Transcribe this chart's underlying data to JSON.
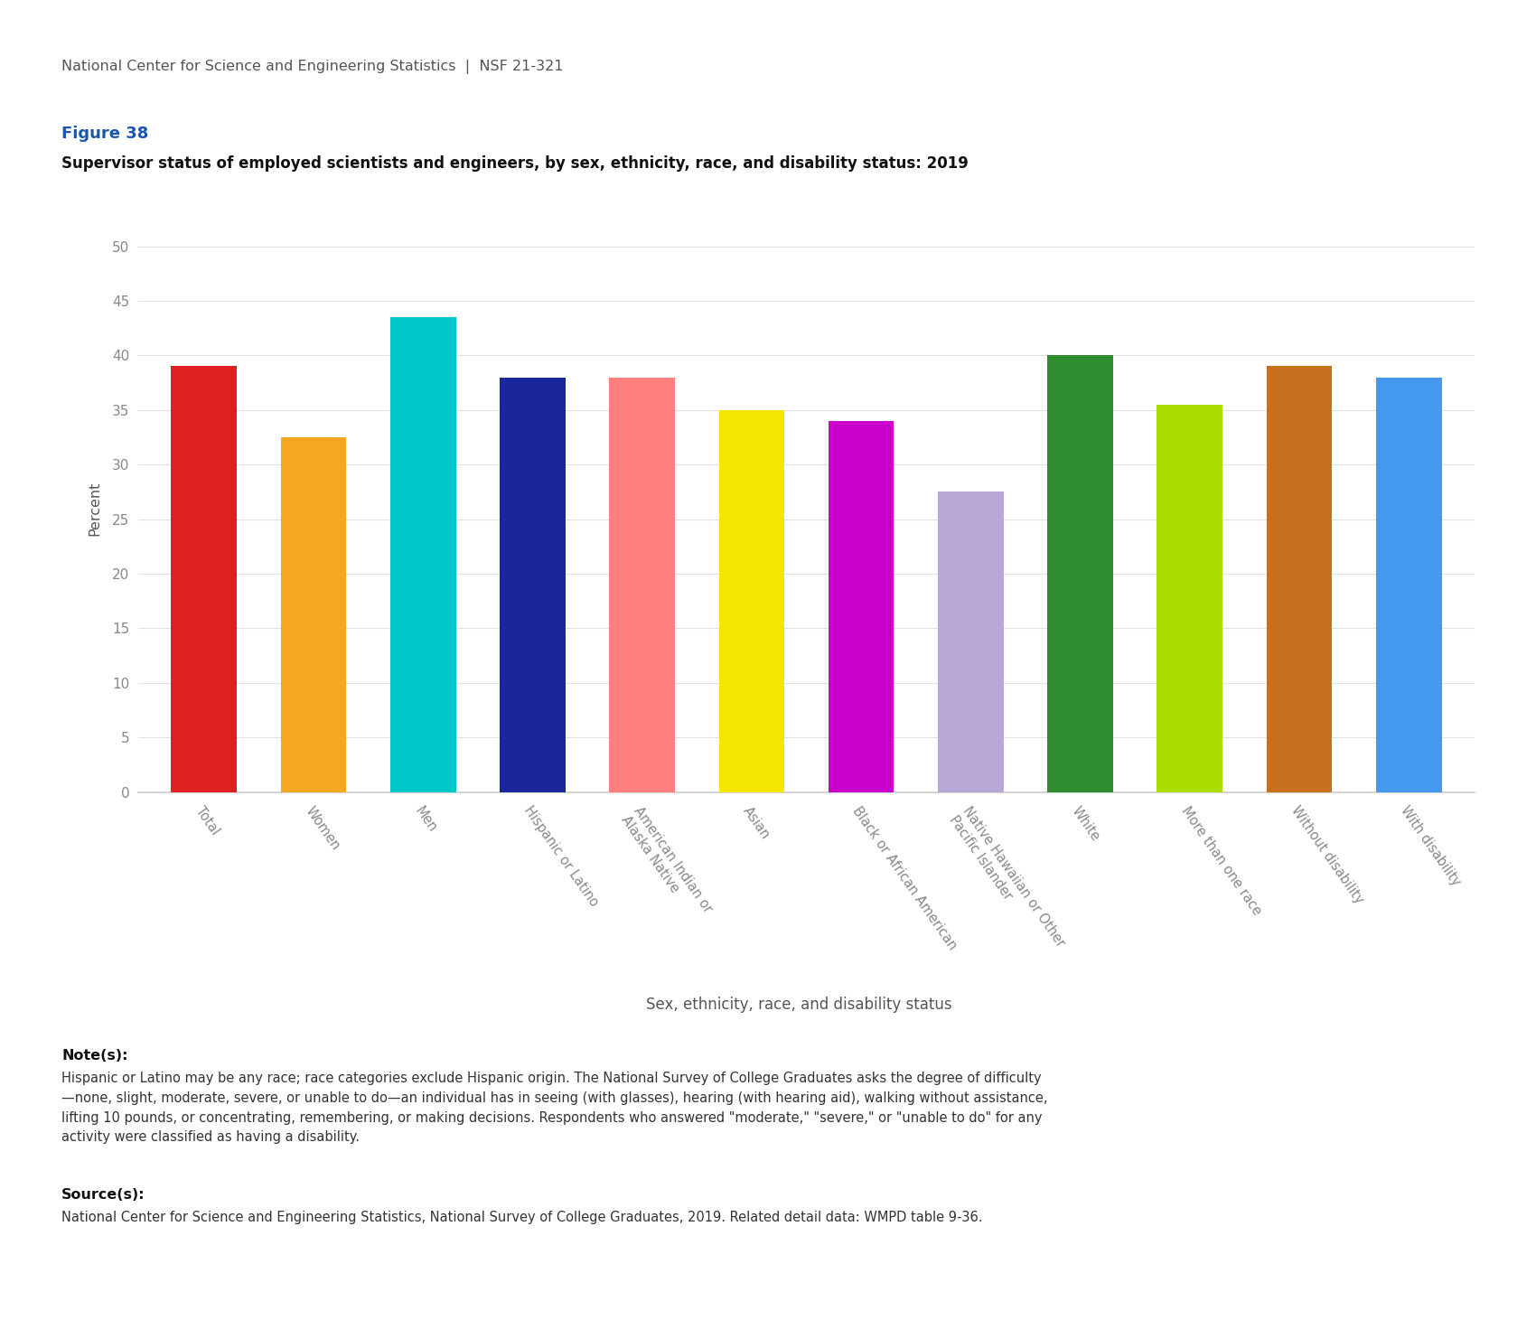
{
  "categories": [
    "Total",
    "Women",
    "Men",
    "Hispanic or Latino",
    "American Indian or\nAlaska Native",
    "Asian",
    "Black or African American",
    "Native Hawaiian or Other\nPacific Islander",
    "White",
    "More than one race",
    "Without disability",
    "With disability"
  ],
  "values": [
    39.0,
    32.5,
    43.5,
    38.0,
    38.0,
    35.0,
    34.0,
    27.5,
    40.0,
    35.5,
    39.0,
    38.0
  ],
  "bar_colors": [
    "#e02020",
    "#f5a623",
    "#00c8c8",
    "#1a2699",
    "#ff7f7f",
    "#f5e600",
    "#cc00cc",
    "#b8a8d8",
    "#2e8b2e",
    "#aadd00",
    "#c87020",
    "#4499ee"
  ],
  "figure_title": "Figure 38",
  "chart_title": "Supervisor status of employed scientists and engineers, by sex, ethnicity, race, and disability status: 2019",
  "header": "National Center for Science and Engineering Statistics  |  NSF 21-321",
  "ylabel": "Percent",
  "xlabel": "Sex, ethnicity, race, and disability status",
  "ylim": [
    0,
    52
  ],
  "yticks": [
    0,
    5,
    10,
    15,
    20,
    25,
    30,
    35,
    40,
    45,
    50
  ],
  "note_label": "Note(s):",
  "note_text": "Hispanic or Latino may be any race; race categories exclude Hispanic origin. The National Survey of College Graduates asks the degree of difficulty\n—none, slight, moderate, severe, or unable to do—an individual has in seeing (with glasses), hearing (with hearing aid), walking without assistance,\nlifting 10 pounds, or concentrating, remembering, or making decisions. Respondents who answered \"moderate,\" \"severe,\" or \"unable to do\" for any\nactivity were classified as having a disability.",
  "source_label": "Source(s):",
  "source_text": "National Center for Science and Engineering Statistics, National Survey of College Graduates, 2019. Related detail data: WMPD table 9-36.",
  "header_line_color": "#c8c800",
  "figure_title_color": "#1a56b0",
  "background_color": "#ffffff",
  "header_text_color": "#555555",
  "chart_title_color": "#111111",
  "tick_label_color": "#888888",
  "ylabel_color": "#555555",
  "xlabel_color": "#555555",
  "note_color": "#333333",
  "spine_bottom_color": "#cccccc",
  "grid_color": "#e0e0e0"
}
